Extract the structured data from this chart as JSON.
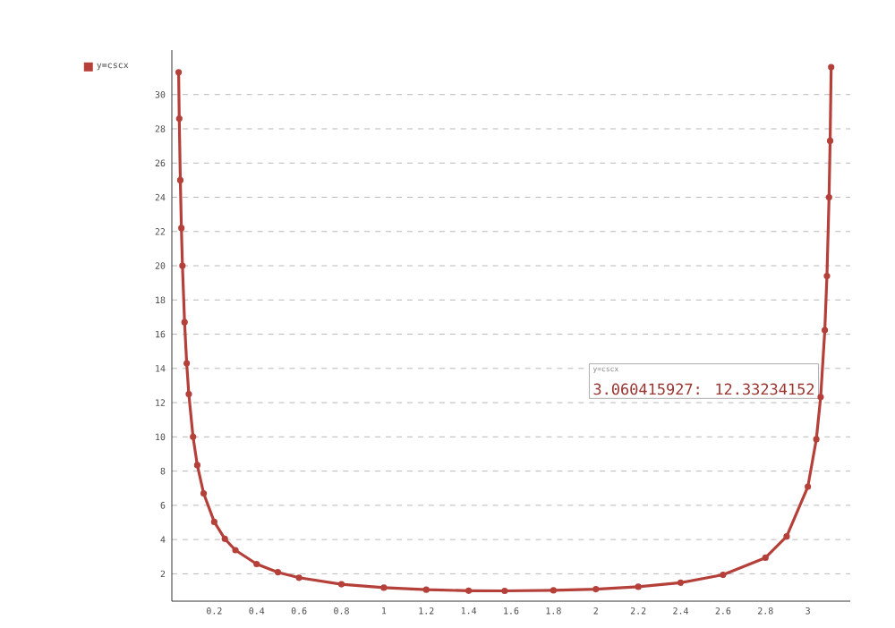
{
  "chart_data": {
    "type": "line",
    "x": [
      0.032,
      0.035,
      0.04,
      0.045,
      0.05,
      0.06,
      0.07,
      0.08,
      0.1,
      0.12,
      0.15,
      0.2,
      0.25,
      0.3,
      0.4,
      0.5,
      0.6,
      0.8,
      1.0,
      1.2,
      1.4,
      1.57,
      1.8,
      2.0,
      2.2,
      2.4,
      2.6,
      2.8,
      2.9,
      3.0,
      3.04,
      3.060415927,
      3.08,
      3.09,
      3.1,
      3.105,
      3.11
    ],
    "series": [
      {
        "name": "y=cscx",
        "color": "#b5403a",
        "values": [
          31.3,
          28.6,
          25.0,
          22.2,
          20.0,
          16.7,
          14.3,
          12.5,
          10.0,
          8.35,
          6.7,
          5.03,
          4.04,
          3.38,
          2.57,
          2.09,
          1.77,
          1.39,
          1.19,
          1.07,
          1.01,
          1.0,
          1.03,
          1.1,
          1.24,
          1.48,
          1.94,
          2.94,
          4.18,
          7.09,
          9.86,
          12.33234152,
          16.24,
          19.4,
          24.0,
          27.3,
          31.6
        ]
      }
    ],
    "xlim": [
      0,
      3.2
    ],
    "ylim": [
      0.4,
      32.6
    ],
    "xticks": [
      0.2,
      0.4,
      0.6,
      0.8,
      1,
      1.2,
      1.4,
      1.6,
      1.8,
      2,
      2.2,
      2.4,
      2.6,
      2.8,
      3
    ],
    "yticks": [
      2,
      4,
      6,
      8,
      10,
      12,
      14,
      16,
      18,
      20,
      22,
      24,
      26,
      28,
      30
    ],
    "grid": "y",
    "legend": "top left",
    "marker": "circle",
    "line_style": "solid",
    "annotations": [
      "y=cscx",
      {
        "text": "3.060415927: 12.33234152",
        "x": 3.060415927,
        "y": 12.33234152
      }
    ]
  }
}
